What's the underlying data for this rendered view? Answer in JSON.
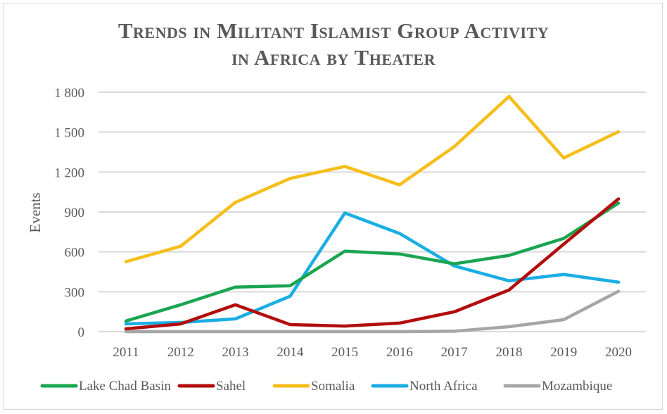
{
  "chart_data": {
    "type": "line",
    "title": "Trends in Militant Islamist Group Activity",
    "subtitle": "in Africa by Theater",
    "xlabel": "",
    "ylabel": "Events",
    "ylim": [
      0,
      1800
    ],
    "yticks": [
      0,
      300,
      600,
      900,
      1200,
      1500,
      1800
    ],
    "ytick_labels": [
      "0",
      "300",
      "600",
      "900",
      "1 200",
      "1 500",
      "1 800"
    ],
    "grid": true,
    "legend_position": "bottom",
    "x": [
      "2011",
      "2012",
      "2013",
      "2014",
      "2015",
      "2016",
      "2017",
      "2018",
      "2019",
      "2020"
    ],
    "series": [
      {
        "name": "Lake Chad Basin",
        "color": "#1aa551",
        "values": [
          80,
          202,
          335,
          345,
          605,
          584,
          510,
          573,
          701,
          966
        ]
      },
      {
        "name": "Sahel",
        "color": "#b30c0c",
        "values": [
          21,
          58,
          202,
          53,
          42,
          64,
          149,
          313,
          658,
          998
        ]
      },
      {
        "name": "Somalia",
        "color": "#f6be1a",
        "values": [
          526,
          642,
          972,
          1152,
          1242,
          1104,
          1391,
          1768,
          1306,
          1503
        ]
      },
      {
        "name": "North Africa",
        "color": "#1aaee3",
        "values": [
          58,
          69,
          96,
          266,
          892,
          738,
          494,
          382,
          430,
          372
        ]
      },
      {
        "name": "Mozambique",
        "color": "#a6a6a6",
        "values": [
          0,
          0,
          0,
          0,
          0,
          0,
          3,
          37,
          90,
          303
        ]
      }
    ]
  }
}
